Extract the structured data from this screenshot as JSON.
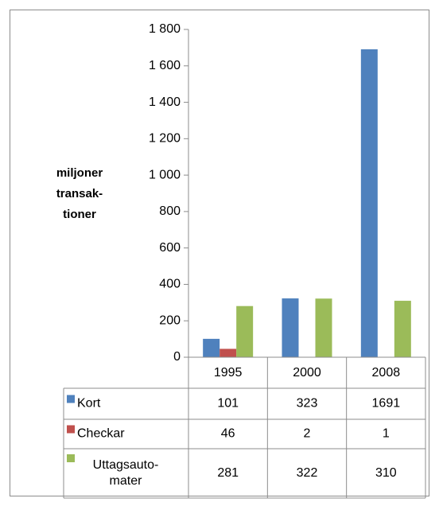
{
  "chart_data": {
    "type": "bar",
    "y_label": [
      "miljoner",
      "transak-",
      "tioner"
    ],
    "categories": [
      "1995",
      "2000",
      "2008"
    ],
    "series": [
      {
        "name": "Kort",
        "color": "#4f81bd",
        "values": [
          101,
          323,
          1691
        ]
      },
      {
        "name": "Checkar",
        "color": "#c0504d",
        "values": [
          46,
          2,
          1
        ]
      },
      {
        "name": "Uttagsauto- mater",
        "color": "#9bbb59",
        "values": [
          281,
          322,
          310
        ]
      }
    ],
    "ylim": [
      0,
      1800
    ],
    "yticks": [
      0,
      200,
      400,
      600,
      800,
      {
        "value": 1000,
        "label": "1 000"
      },
      {
        "value": 1200,
        "label": "1 200"
      },
      {
        "value": 1400,
        "label": "1 400"
      },
      {
        "value": 1600,
        "label": "1 600"
      },
      {
        "value": 1800,
        "label": "1 800"
      }
    ],
    "data_table": true
  }
}
